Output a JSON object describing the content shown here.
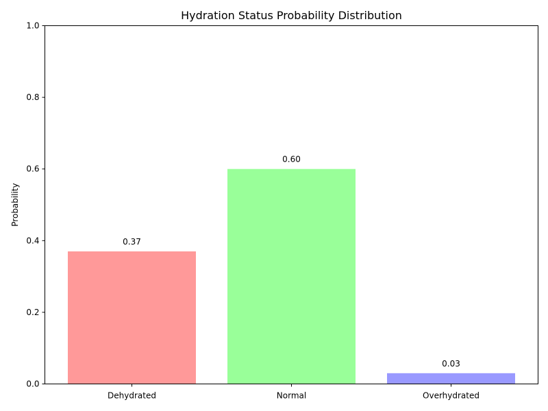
{
  "chart_data": {
    "type": "bar",
    "title": "Hydration Status Probability Distribution",
    "xlabel": "",
    "ylabel": "Probability",
    "categories": [
      "Dehydrated",
      "Normal",
      "Overhydrated"
    ],
    "values": [
      0.37,
      0.6,
      0.03
    ],
    "value_labels": [
      "0.37",
      "0.60",
      "0.03"
    ],
    "colors": [
      "#ff9999",
      "#99ff99",
      "#9999ff"
    ],
    "ylim": [
      0,
      1.0
    ],
    "yticks": [
      0.0,
      0.2,
      0.4,
      0.6,
      0.8,
      1.0
    ],
    "ytick_labels": [
      "0.0",
      "0.2",
      "0.4",
      "0.6",
      "0.8",
      "1.0"
    ],
    "grid": false,
    "legend": "none"
  }
}
